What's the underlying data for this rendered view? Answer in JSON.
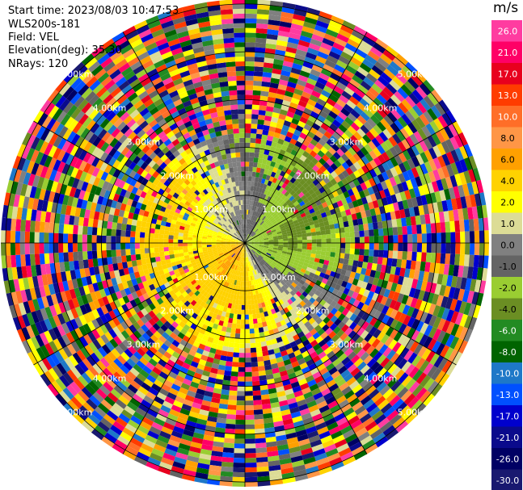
{
  "header": {
    "start_time": "Start time: 2023/08/03 10:47:53",
    "instrument": "WLS200s-181",
    "field": "Field: VEL",
    "elevation": "Elevation(deg): 35.30",
    "nrays": "NRays: 120"
  },
  "chart_data": {
    "type": "ppi",
    "field": "VEL",
    "unit": "m/s",
    "range_rings_km": [
      1.0,
      2.0,
      3.0,
      4.0,
      5.0
    ],
    "ring_label": "km",
    "ring_tick_text": [
      "1.00km",
      "2.00km",
      "3.00km",
      "4.00km",
      "5.00km"
    ],
    "nrays": 120,
    "elevation_deg": 35.3,
    "colorbar": {
      "ticks": [
        "26.0",
        "21.0",
        "17.0",
        "13.0",
        "10.0",
        "8.0",
        "6.0",
        "4.0",
        "2.0",
        "1.0",
        "0.0",
        "-1.0",
        "-2.0",
        "-4.0",
        "-6.0",
        "-8.0",
        "-10.0",
        "-13.0",
        "-17.0",
        "-21.0",
        "-26.0",
        "-30.0"
      ],
      "colors": [
        "#ff3ca0",
        "#ff0066",
        "#e8001e",
        "#ff3c00",
        "#ff6e28",
        "#ff9646",
        "#ffa000",
        "#ffd200",
        "#ffff00",
        "#dcdc96",
        "#808080",
        "#646464",
        "#9acd32",
        "#6b8e23",
        "#228b22",
        "#006400",
        "#1e78c8",
        "#0050ff",
        "#0000cd",
        "#0a0a8c",
        "#000064",
        "#191970"
      ]
    }
  }
}
